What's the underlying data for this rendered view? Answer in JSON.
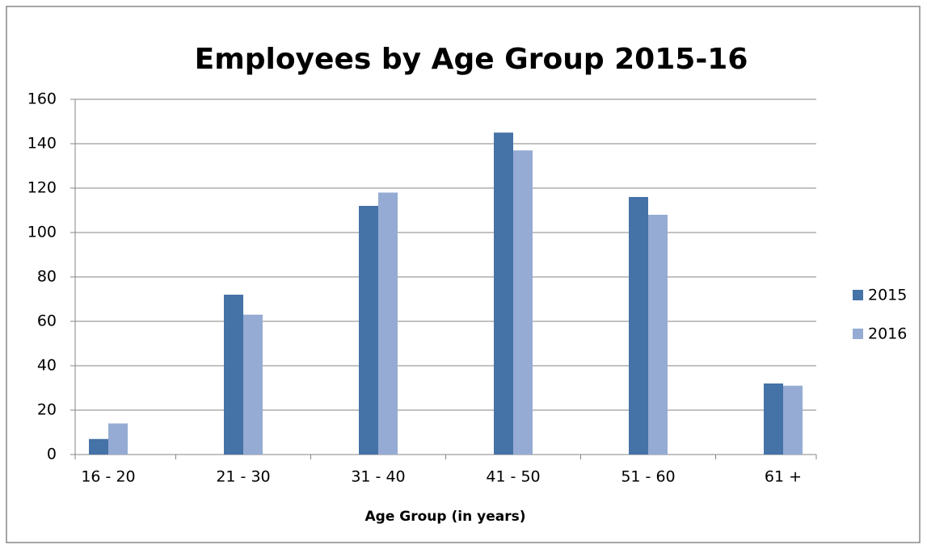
{
  "chart_data": {
    "type": "bar",
    "title": "Employees by Age Group 2015-16",
    "x_label": "Age Group  (in years)",
    "categories": [
      "16 - 20",
      "21 - 30",
      "31 - 40",
      "41 - 50",
      "51 - 60",
      "61 +"
    ],
    "series": [
      {
        "name": "2015",
        "color": "#4572a7",
        "values": [
          7,
          72,
          112,
          145,
          116,
          32
        ]
      },
      {
        "name": "2016",
        "color": "#95abd3",
        "values": [
          14,
          63,
          118,
          137,
          108,
          31
        ]
      }
    ],
    "ylim": [
      0,
      160
    ],
    "yticks": [
      0,
      20,
      40,
      60,
      80,
      100,
      120,
      140,
      160
    ],
    "grid": true,
    "legend": "right"
  }
}
